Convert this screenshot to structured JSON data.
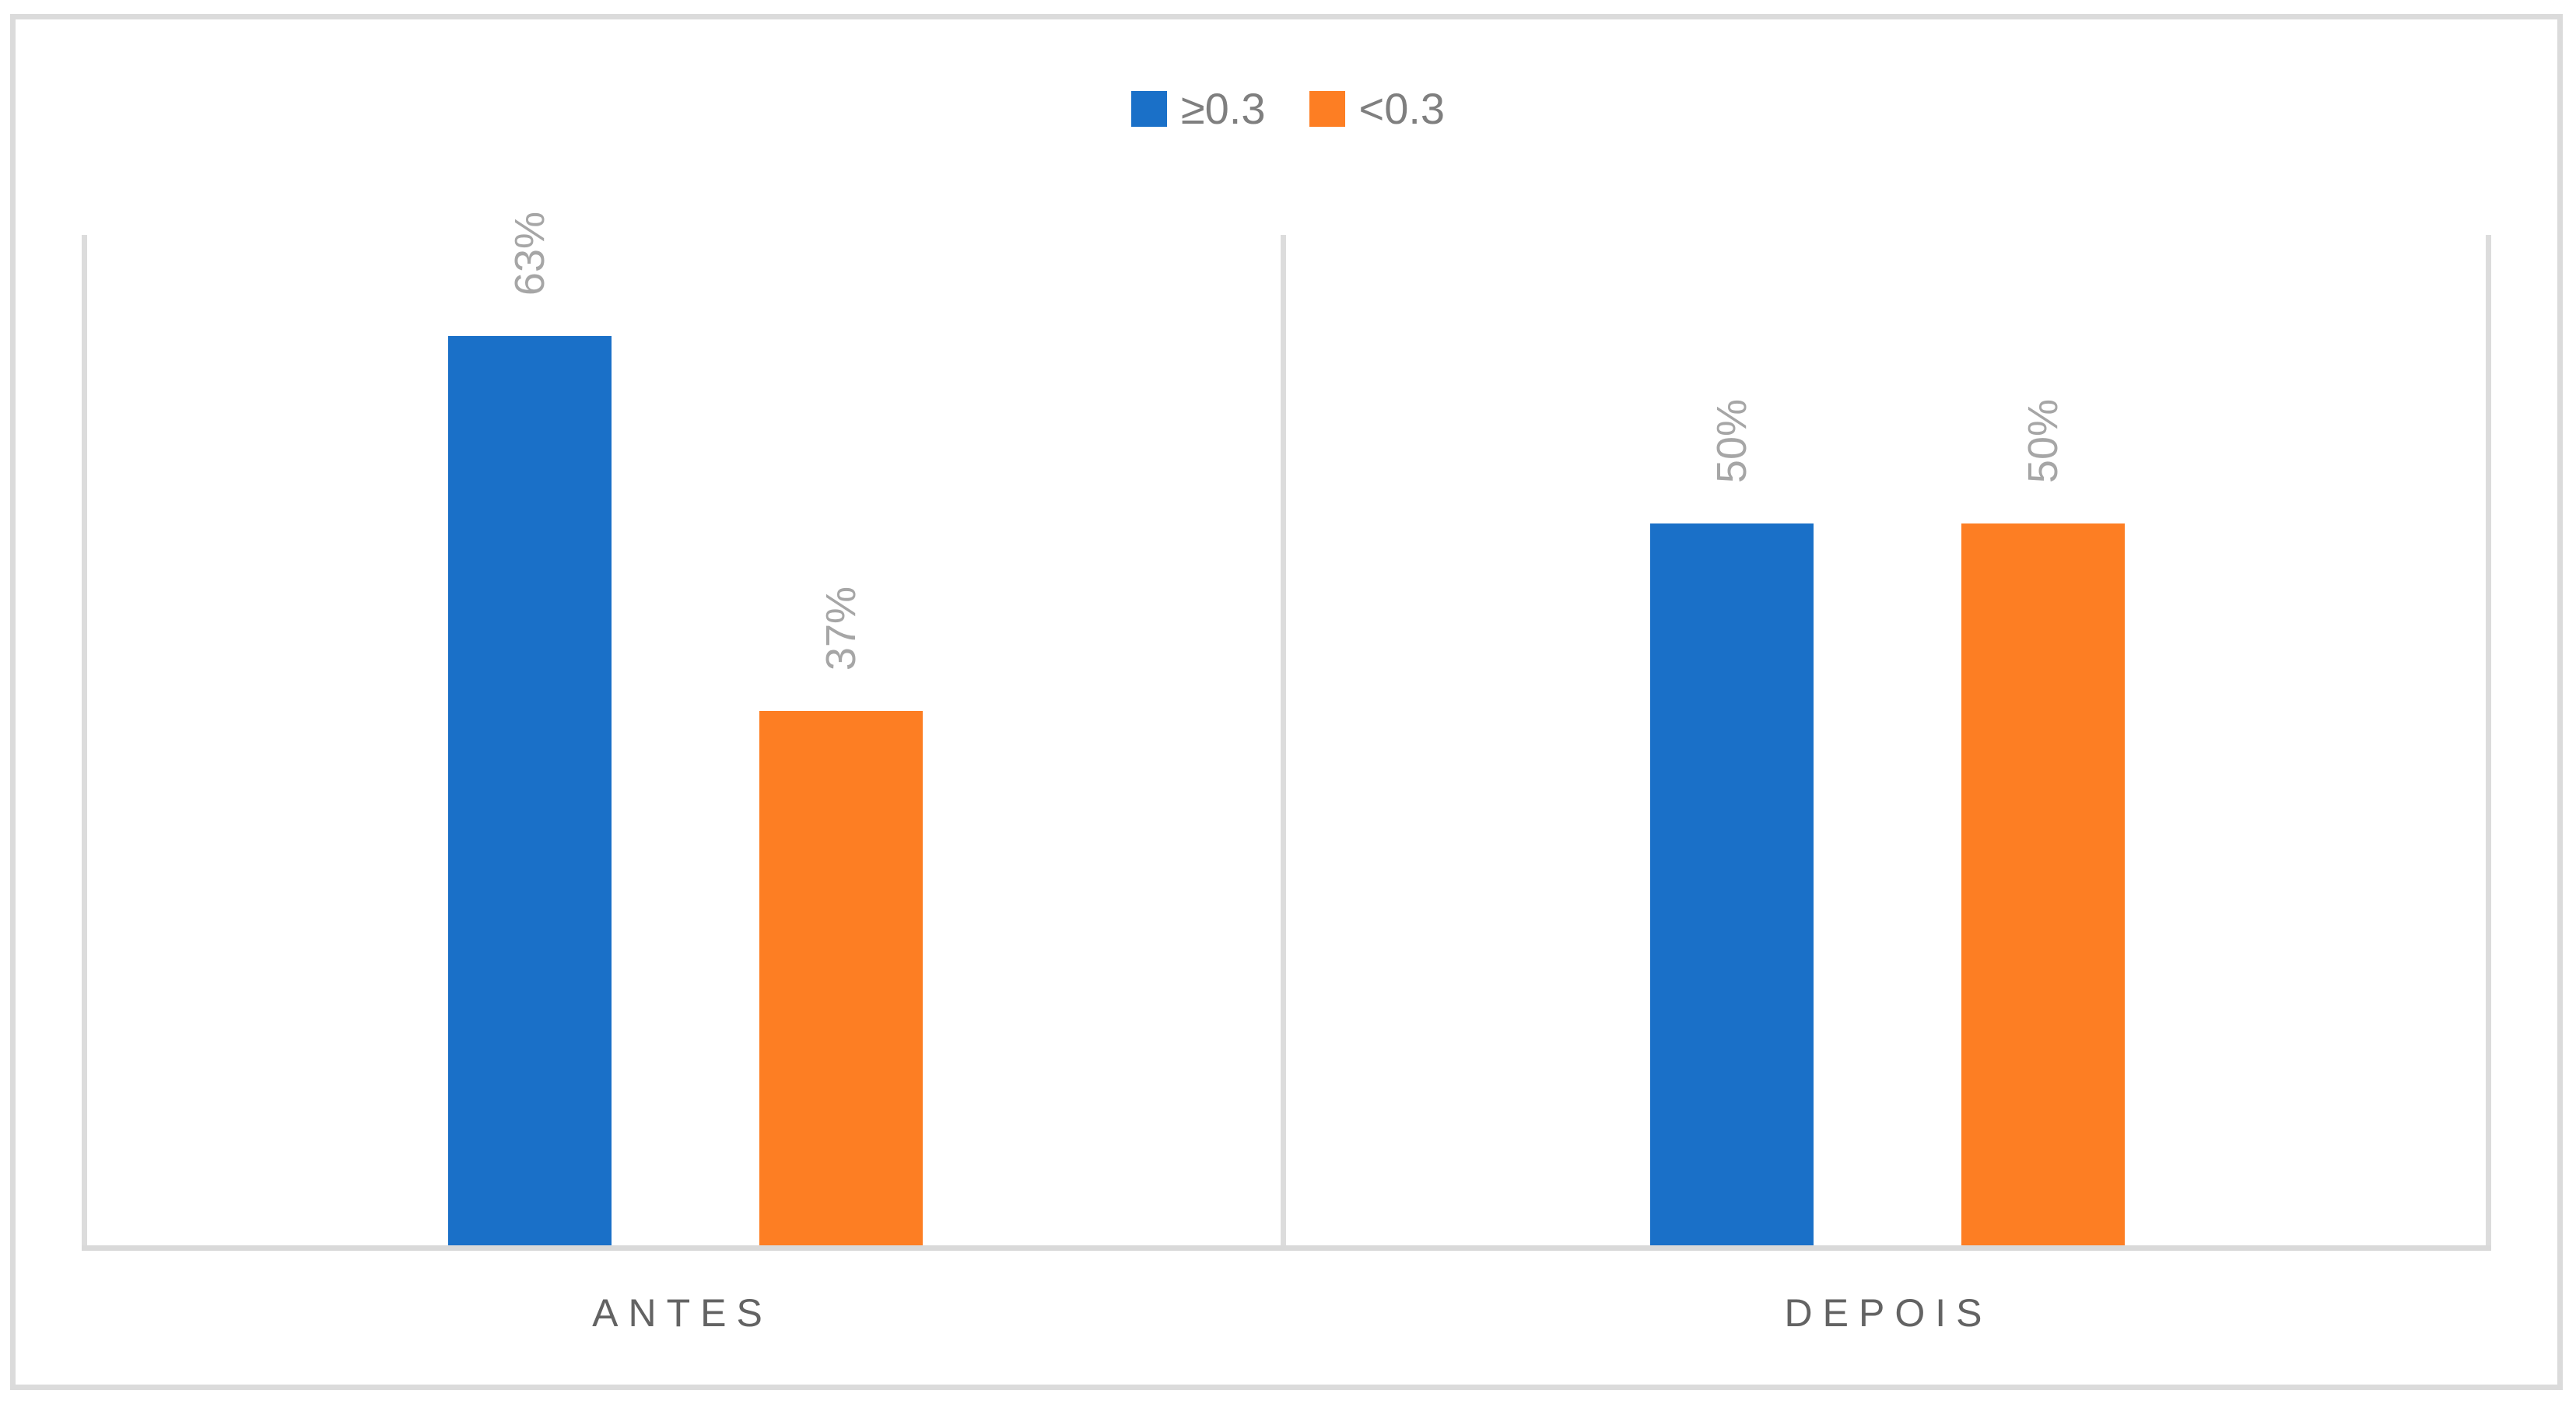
{
  "chart_data": {
    "type": "bar",
    "title": "",
    "categories": [
      "ANTES",
      "DEPOIS"
    ],
    "series": [
      {
        "name": "≥0.3",
        "color": "#1A70C8",
        "values": [
          63,
          50
        ],
        "data_labels": [
          "63%",
          "50%"
        ]
      },
      {
        "name": "<0.3",
        "color": "#FD7E23",
        "values": [
          37,
          50
        ],
        "data_labels": [
          "37%",
          "50%"
        ]
      }
    ],
    "ylim": [
      0,
      70
    ],
    "y_axis_visible": false,
    "x_axis_line_color": "#D9D9D9",
    "category_boundary_line_color": "#DCDCDC",
    "grid": "vertical category-boundary lines only",
    "legend_position": "top-center",
    "legend_text_color": "#7F7F7F",
    "data_label_color": "#A6A6A6",
    "data_label_rotation_deg": -90,
    "category_label_color": "#636363",
    "outer_border_color": "#DBDBDB",
    "background": "#FFFFFF"
  }
}
